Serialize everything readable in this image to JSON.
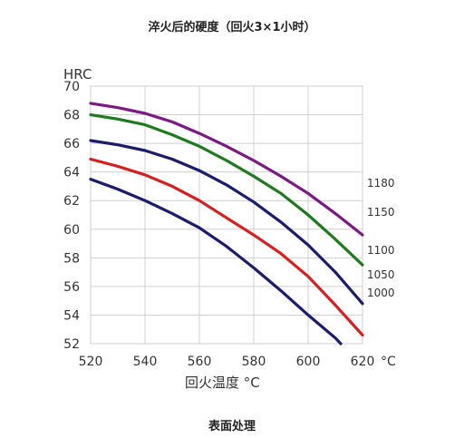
{
  "title": "淬火后的硬度（回火3×1小时）",
  "caption": "表面处理",
  "chart_data": {
    "type": "line",
    "ylabel": "HRC",
    "xlabel": "回火温度 °C",
    "x_unit_label": "°C",
    "xlim": [
      520,
      620
    ],
    "ylim": [
      52,
      70
    ],
    "x_ticks": [
      "520",
      "540",
      "560",
      "580",
      "600",
      "620"
    ],
    "y_ticks": [
      "52",
      "54",
      "56",
      "58",
      "60",
      "62",
      "64",
      "66",
      "68",
      "70"
    ],
    "grid": true,
    "series": [
      {
        "name": "1180",
        "color": "#7b1a84",
        "x": [
          520,
          530,
          540,
          550,
          560,
          570,
          580,
          590,
          600,
          610,
          620
        ],
        "y": [
          68.8,
          68.5,
          68.1,
          67.5,
          66.7,
          65.8,
          64.8,
          63.7,
          62.5,
          61.1,
          59.6
        ]
      },
      {
        "name": "1150",
        "color": "#1f7a1f",
        "x": [
          520,
          530,
          540,
          550,
          560,
          570,
          580,
          590,
          600,
          610,
          620
        ],
        "y": [
          68.0,
          67.7,
          67.3,
          66.6,
          65.8,
          64.8,
          63.7,
          62.5,
          61.0,
          59.3,
          57.5
        ]
      },
      {
        "name": "1100",
        "color": "#1c1c6e",
        "x": [
          520,
          530,
          540,
          550,
          560,
          570,
          580,
          590,
          600,
          610,
          620
        ],
        "y": [
          66.2,
          65.9,
          65.5,
          64.9,
          64.1,
          63.1,
          61.9,
          60.5,
          58.9,
          57.0,
          54.8
        ]
      },
      {
        "name": "1050",
        "color": "#d42020",
        "x": [
          520,
          530,
          540,
          550,
          560,
          570,
          580,
          590,
          600,
          610,
          620
        ],
        "y": [
          64.9,
          64.4,
          63.8,
          63.0,
          62.0,
          60.8,
          59.6,
          58.3,
          56.7,
          54.7,
          52.6
        ]
      },
      {
        "name": "1000",
        "color": "#1c1c6e",
        "x": [
          520,
          530,
          540,
          550,
          560,
          570,
          580,
          590,
          600,
          610,
          612
        ],
        "y": [
          63.5,
          62.8,
          62.0,
          61.1,
          60.1,
          58.8,
          57.3,
          55.7,
          54.0,
          52.4,
          52.0
        ]
      }
    ]
  }
}
